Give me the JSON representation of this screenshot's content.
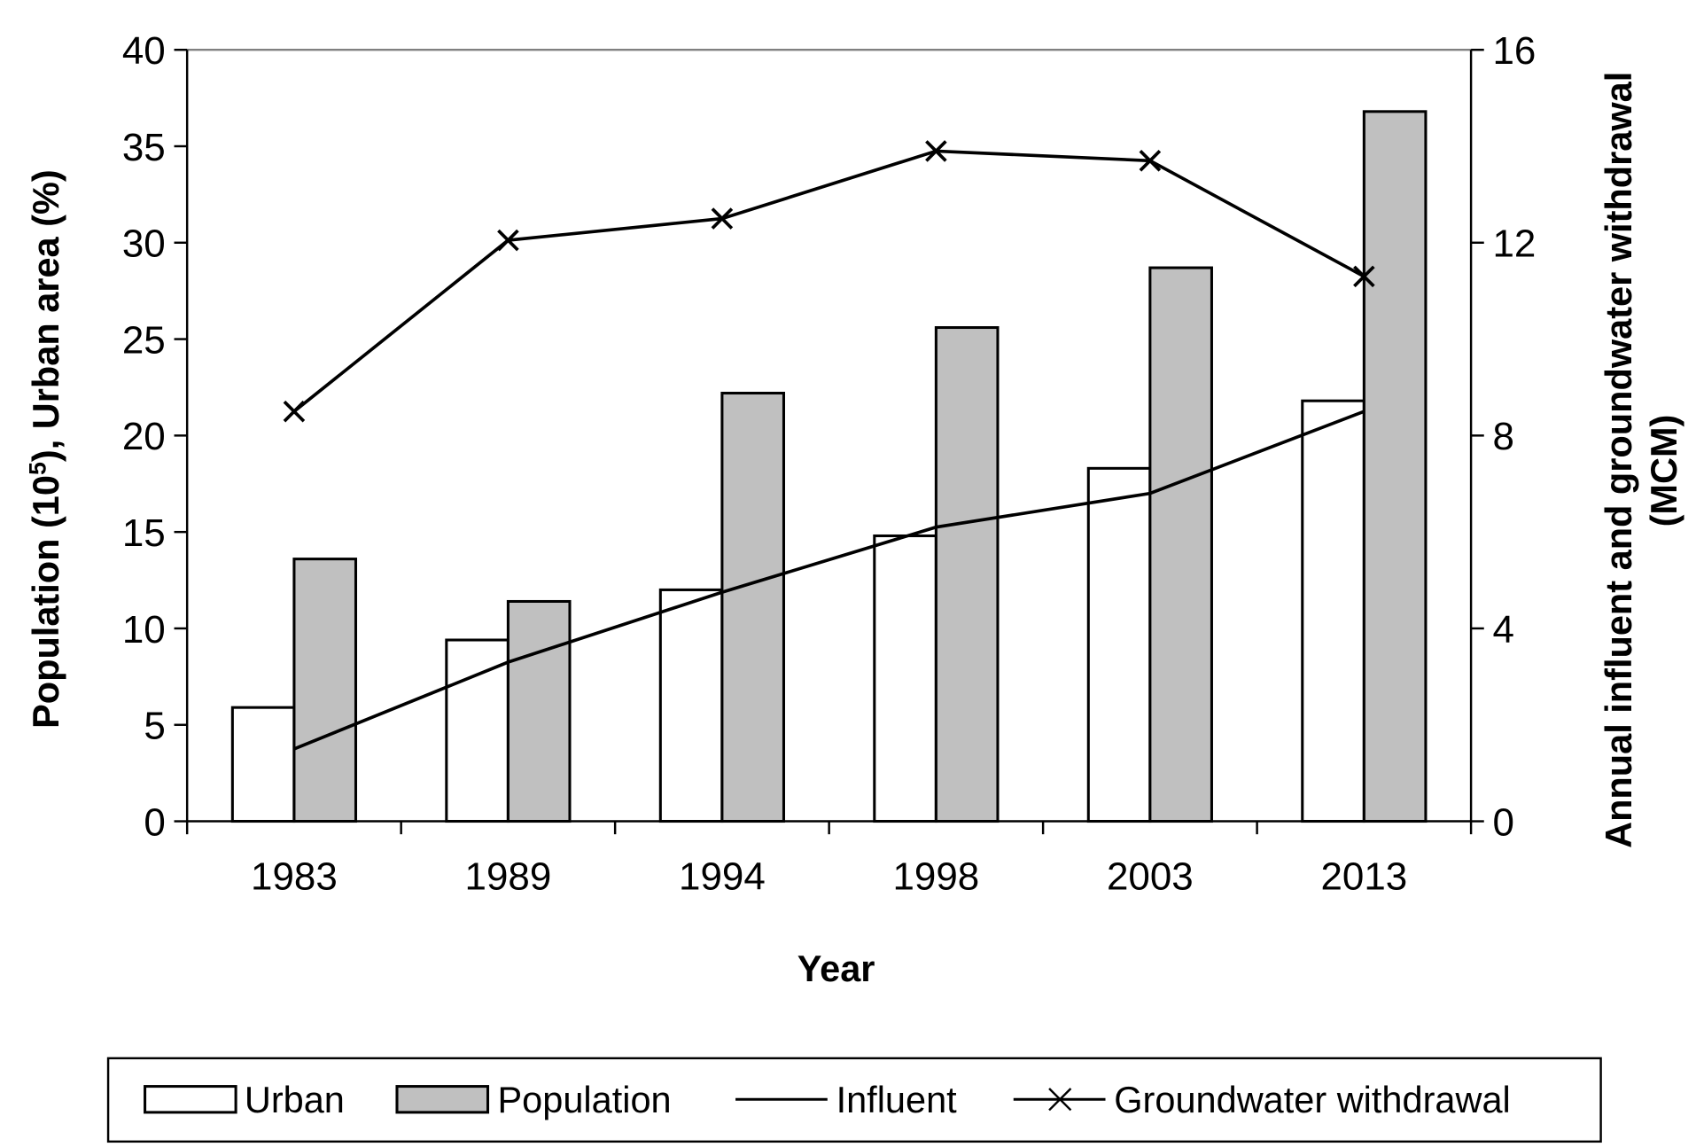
{
  "chart_data": {
    "type": "bar",
    "title": "",
    "xlabel": "Year",
    "ylabel": "Population (10^5), Urban area (%)",
    "ylabel_parts": {
      "before": "Population (10",
      "sup": "5",
      "after": "), Urban area (%)"
    },
    "y2label_line1": "Annual influent  and groundwater withdrawal",
    "y2label_line2": "(MCM)",
    "categories": [
      "1983",
      "1989",
      "1994",
      "1998",
      "2003",
      "2013"
    ],
    "ylim": [
      0,
      40
    ],
    "y2lim": [
      0,
      16
    ],
    "yticks": [
      "0",
      "5",
      "10",
      "15",
      "20",
      "25",
      "30",
      "35",
      "40"
    ],
    "y2ticks": [
      "0",
      "4",
      "8",
      "12",
      "16"
    ],
    "grid": false,
    "legend_position": "bottom",
    "series": [
      {
        "name": "Urban",
        "type": "bar",
        "axis": "left",
        "color": "#ffffff",
        "values": [
          5.9,
          9.4,
          12.0,
          14.8,
          18.3,
          21.8
        ]
      },
      {
        "name": "Population",
        "type": "bar",
        "axis": "left",
        "color": "#c0c0c0",
        "values": [
          13.6,
          11.4,
          22.2,
          25.6,
          28.7,
          36.8
        ]
      },
      {
        "name": "Influent",
        "type": "line",
        "axis": "right",
        "color": "#000000",
        "values": [
          1.5,
          3.3,
          4.75,
          6.1,
          6.8,
          8.5
        ]
      },
      {
        "name": "Groundwater withdrawal",
        "type": "line",
        "marker": "x",
        "axis": "right",
        "color": "#000000",
        "values": [
          8.5,
          12.05,
          12.5,
          13.9,
          13.7,
          11.3
        ]
      }
    ]
  }
}
